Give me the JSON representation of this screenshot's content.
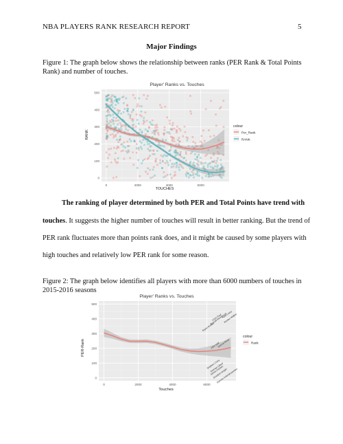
{
  "header": {
    "running_head": "NBA PLAYERS RANK RESEARCH REPORT",
    "page_number": "5"
  },
  "section_heading": "Major Findings",
  "figure1_caption": [
    "Figure 1: The graph below shows the relationship between ranks (PER Rank & Total Points",
    "Rank) and number of touches."
  ],
  "body_lines": [
    {
      "bold": "The ranking of player determined by both PER and Total Points have trend with",
      "rest": ""
    },
    {
      "bold": "touches",
      "rest": ". It suggests the higher number of touches will result in better ranking. But the trend of"
    },
    {
      "bold": "",
      "rest": "PER rank fluctuates more than points rank does, and it might be caused by some players with"
    },
    {
      "bold": "",
      "rest": "high touches and relatively low PER rank for some reason."
    }
  ],
  "figure2_caption": [
    "Figure 2: The graph below identifies all players with more than 6000 numbers of touches in",
    "2015-2016 seasons"
  ],
  "chart_data": [
    {
      "type": "scatter",
      "title": "Player' Ranks vs. Touches",
      "xlabel": "TOUCHES",
      "ylabel": "RANK",
      "xlim": [
        -300,
        7800
      ],
      "ylim": [
        -20,
        520
      ],
      "x_ticks": [
        0,
        2000,
        4000,
        6000
      ],
      "y_ticks": [
        0,
        100,
        200,
        300,
        400,
        500
      ],
      "grid": true,
      "legend": {
        "title": "colour",
        "position": "right"
      },
      "series": [
        {
          "name": "Per_Rank",
          "color": "#e8837c",
          "smooth": [
            [
              0,
              300
            ],
            [
              500,
              285
            ],
            [
              1000,
              268
            ],
            [
              1500,
              255
            ],
            [
              2000,
              250
            ],
            [
              2500,
              245
            ],
            [
              3000,
              230
            ],
            [
              3500,
              215
            ],
            [
              4000,
              198
            ],
            [
              4500,
              184
            ],
            [
              5000,
              175
            ],
            [
              5500,
              170
            ],
            [
              6000,
              170
            ],
            [
              6500,
              178
            ],
            [
              7000,
              192
            ],
            [
              7500,
              210
            ]
          ],
          "ribbon_halfwidth": [
            14,
            10,
            9,
            9,
            9,
            9,
            9,
            9,
            10,
            11,
            13,
            17,
            25,
            38,
            55,
            75
          ]
        },
        {
          "name": "RANK",
          "color": "#4fb6bd",
          "smooth": [
            [
              0,
              430
            ],
            [
              500,
              385
            ],
            [
              1000,
              340
            ],
            [
              1500,
              300
            ],
            [
              2000,
              262
            ],
            [
              2500,
              232
            ],
            [
              3000,
              200
            ],
            [
              3500,
              170
            ],
            [
              4000,
              138
            ],
            [
              4500,
              110
            ],
            [
              5000,
              85
            ],
            [
              5500,
              62
            ],
            [
              6000,
              45
            ],
            [
              6500,
              35
            ],
            [
              7000,
              33
            ],
            [
              7500,
              38
            ]
          ],
          "ribbon_halfwidth": [
            12,
            9,
            8,
            8,
            8,
            8,
            8,
            8,
            8,
            9,
            10,
            12,
            15,
            18,
            22,
            28
          ]
        }
      ]
    },
    {
      "type": "line",
      "title": "Player' Ranks vs. Touches",
      "xlabel": "Touches",
      "ylabel": "PER-Rank",
      "xlim": [
        -300,
        7700
      ],
      "ylim": [
        -20,
        520
      ],
      "x_ticks": [
        0,
        2000,
        4000,
        6000
      ],
      "y_ticks": [
        0,
        100,
        200,
        300,
        400,
        500
      ],
      "grid": true,
      "legend": {
        "title": "colour",
        "position": "right"
      },
      "series": [
        {
          "name": "Rank",
          "color": "#e8837c",
          "x": [
            0,
            500,
            1000,
            1500,
            2000,
            2500,
            3000,
            3500,
            4000,
            4500,
            5000,
            5500,
            6000,
            6500,
            7000,
            7400
          ],
          "y": [
            305,
            285,
            262,
            248,
            247,
            248,
            240,
            225,
            208,
            192,
            182,
            178,
            180,
            185,
            195,
            205
          ],
          "ribbon_halfwidth": [
            28,
            20,
            14,
            12,
            12,
            12,
            12,
            12,
            13,
            14,
            17,
            22,
            30,
            40,
            55,
            70
          ]
        }
      ],
      "annotations": [
        {
          "text": "Chris Paul",
          "x": 6600,
          "y": 405
        },
        {
          "text": "Russell Westbrook",
          "x": 6700,
          "y": 395
        },
        {
          "text": "Kyle Lowry",
          "x": 7200,
          "y": 425
        },
        {
          "text": "Kemba Walker",
          "x": 7400,
          "y": 400
        },
        {
          "text": "Rajon Rondo",
          "x": 6100,
          "y": 340
        },
        {
          "text": "John Wall",
          "x": 6500,
          "y": 215
        },
        {
          "text": "Derrick Rose",
          "x": 7000,
          "y": 230
        },
        {
          "text": "Stephen Curry",
          "x": 6400,
          "y": 88
        },
        {
          "text": "Damian Lillard",
          "x": 6600,
          "y": 66
        },
        {
          "text": "James Harden",
          "x": 6600,
          "y": 46
        },
        {
          "text": "Brandon Knight",
          "x": 6800,
          "y": 26
        },
        {
          "text": "Giannis Antetokounmpo",
          "x": 7200,
          "y": 10
        }
      ]
    }
  ]
}
